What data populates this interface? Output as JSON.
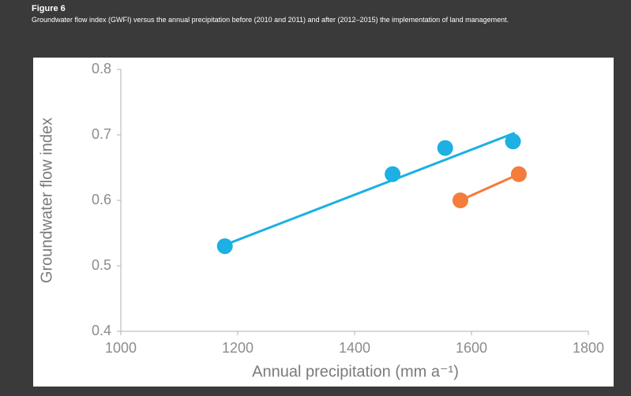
{
  "header": {
    "title": "Figure 6",
    "caption": "Groundwater flow index (GWFI) versus the annual precipitation before (2010 and 2011) and after (2012–2015) the implementation of land management."
  },
  "chart_data": {
    "type": "scatter",
    "x_label": "Annual precipitation (mm a⁻¹)",
    "y_label": "Groundwater flow index",
    "xlim": [
      1000,
      1800
    ],
    "xticks": [
      1000,
      1200,
      1400,
      1600,
      1800
    ],
    "ylim": [
      0.4,
      0.8
    ],
    "yticks": [
      0.4,
      0.5,
      0.6,
      0.7,
      0.8
    ],
    "series": [
      {
        "color": "#1cb0e3",
        "x": [
          1178,
          1465,
          1555,
          1671
        ],
        "values": [
          0.53,
          0.64,
          0.68,
          0.69
        ],
        "trend_x": [
          1178,
          1674
        ],
        "trend_y": [
          0.532,
          0.703
        ]
      },
      {
        "color": "#f47c3c",
        "x": [
          1581,
          1681
        ],
        "values": [
          0.6,
          0.64
        ],
        "trend_x": [
          1581,
          1681
        ],
        "trend_y": [
          0.6,
          0.64
        ]
      }
    ]
  }
}
